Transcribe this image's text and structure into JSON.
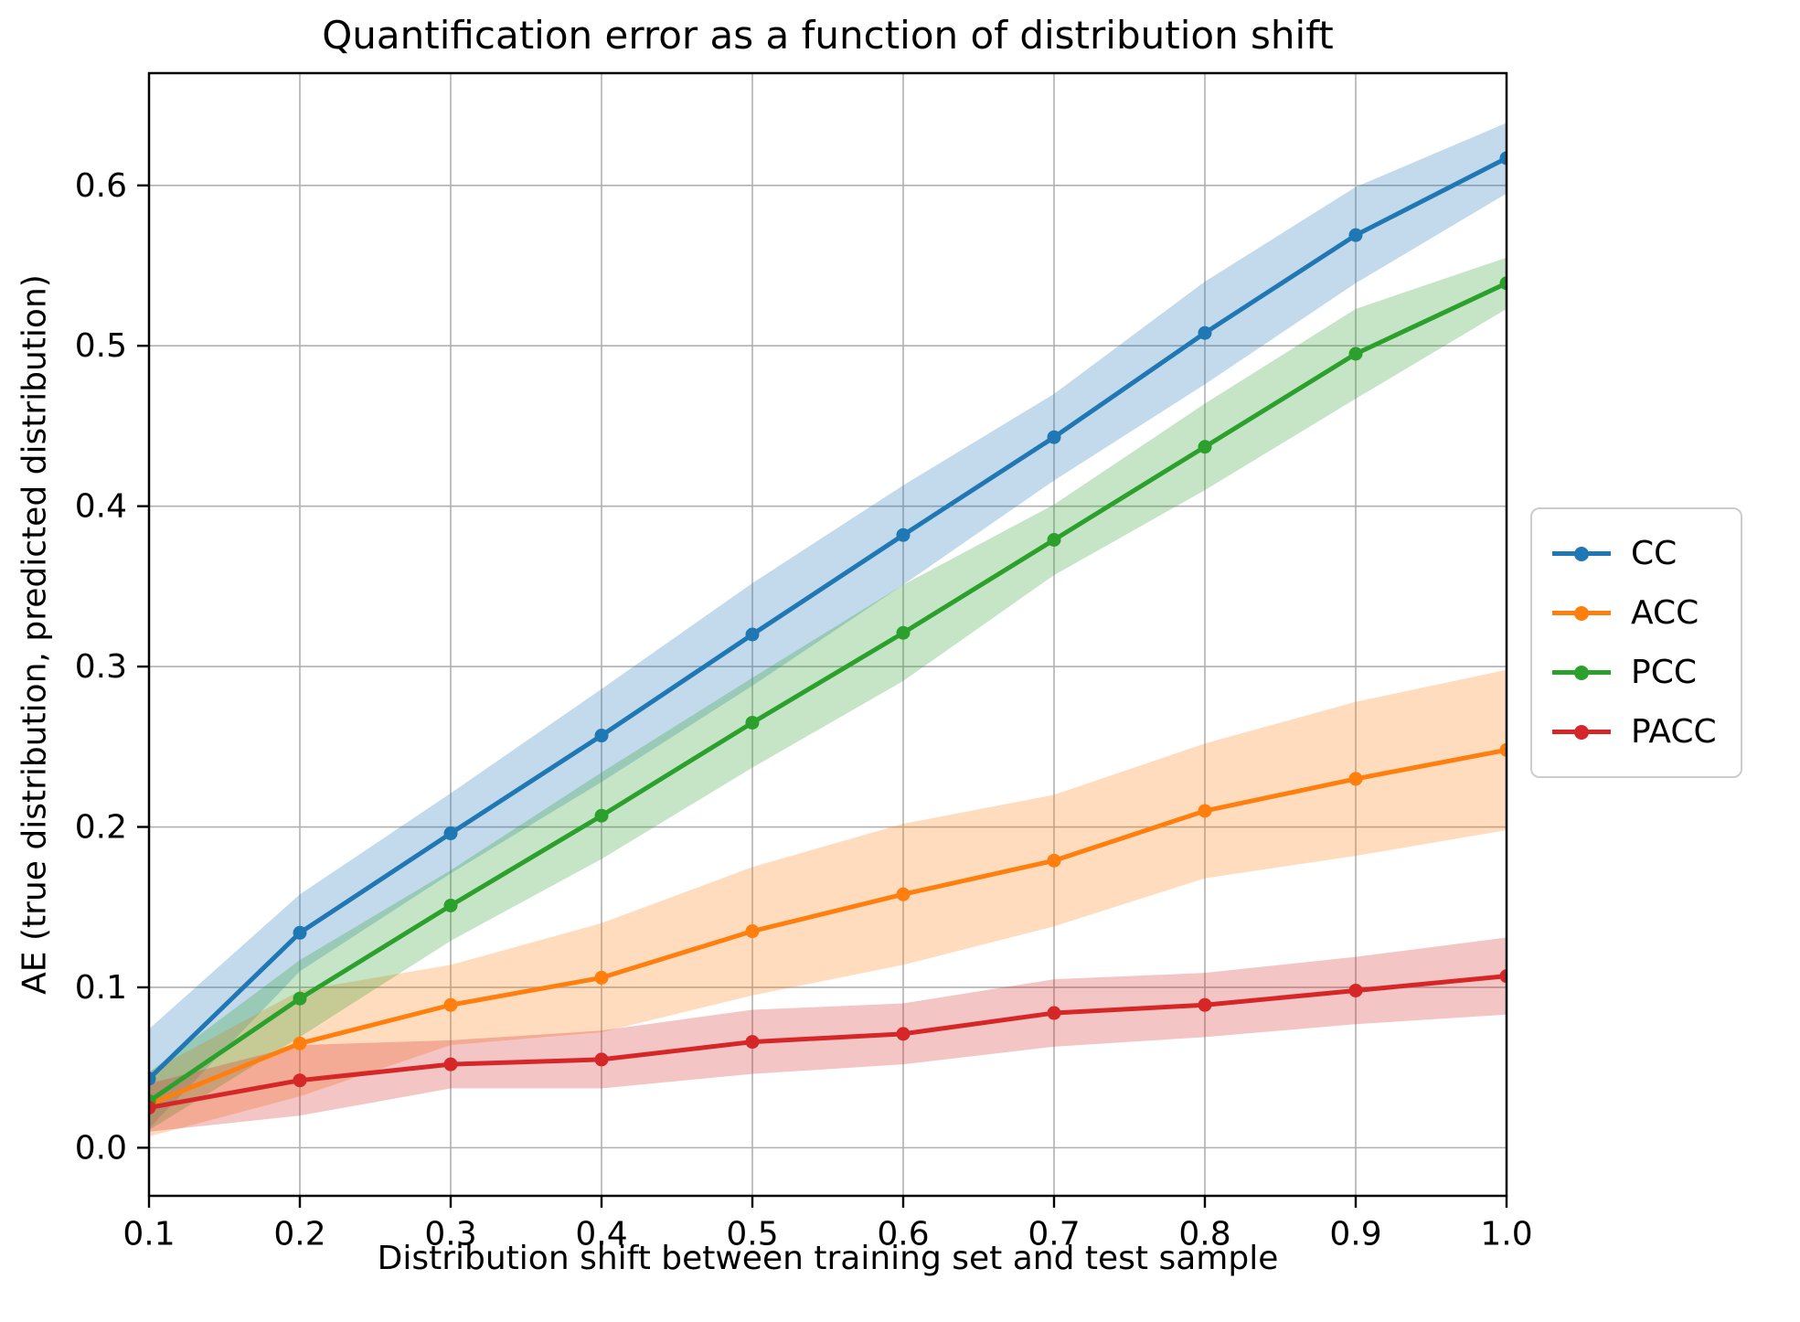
{
  "chart_data": {
    "type": "line",
    "title": "Quantification error as a function of distribution shift",
    "xlabel": "Distribution shift between training set and test sample",
    "ylabel": "AE (true distribution, predicted distribution)",
    "x": [
      0.1,
      0.2,
      0.3,
      0.4,
      0.5,
      0.6,
      0.7,
      0.8,
      0.9,
      1.0
    ],
    "x_tick_labels": [
      "0.1",
      "0.2",
      "0.3",
      "0.4",
      "0.5",
      "0.6",
      "0.7",
      "0.8",
      "0.9",
      "1.0"
    ],
    "y_ticks": [
      0.0,
      0.1,
      0.2,
      0.3,
      0.4,
      0.5,
      0.6
    ],
    "y_tick_labels": [
      "0.0",
      "0.1",
      "0.2",
      "0.3",
      "0.4",
      "0.5",
      "0.6"
    ],
    "xlim": [
      0.1,
      1.0
    ],
    "ylim": [
      -0.03,
      0.67
    ],
    "grid": true,
    "grid_color": "#b0b0b0",
    "legend_position": "outside-right",
    "marker": "circle",
    "band_opacity": 0.27,
    "series": [
      {
        "name": "CC",
        "color": "#1f77b4",
        "values": [
          0.043,
          0.134,
          0.196,
          0.257,
          0.32,
          0.382,
          0.443,
          0.508,
          0.569,
          0.617
        ],
        "band_lower": [
          0.012,
          0.11,
          0.171,
          0.228,
          0.288,
          0.351,
          0.416,
          0.476,
          0.539,
          0.595
        ],
        "band_upper": [
          0.074,
          0.158,
          0.221,
          0.286,
          0.352,
          0.413,
          0.47,
          0.54,
          0.599,
          0.639
        ]
      },
      {
        "name": "ACC",
        "color": "#ff7f0e",
        "values": [
          0.027,
          0.065,
          0.089,
          0.106,
          0.135,
          0.158,
          0.179,
          0.21,
          0.23,
          0.248
        ],
        "band_lower": [
          0.007,
          0.032,
          0.064,
          0.072,
          0.095,
          0.114,
          0.138,
          0.168,
          0.182,
          0.198
        ],
        "band_upper": [
          0.047,
          0.098,
          0.114,
          0.14,
          0.175,
          0.202,
          0.22,
          0.252,
          0.278,
          0.298
        ]
      },
      {
        "name": "PCC",
        "color": "#2ca02c",
        "values": [
          0.029,
          0.093,
          0.151,
          0.207,
          0.265,
          0.321,
          0.379,
          0.437,
          0.495,
          0.539
        ],
        "band_lower": [
          0.011,
          0.069,
          0.129,
          0.18,
          0.237,
          0.291,
          0.357,
          0.41,
          0.467,
          0.523
        ],
        "band_upper": [
          0.047,
          0.117,
          0.173,
          0.234,
          0.293,
          0.351,
          0.401,
          0.464,
          0.523,
          0.555
        ]
      },
      {
        "name": "PACC",
        "color": "#d62728",
        "values": [
          0.025,
          0.042,
          0.052,
          0.055,
          0.066,
          0.071,
          0.084,
          0.089,
          0.098,
          0.107
        ],
        "band_lower": [
          0.01,
          0.02,
          0.037,
          0.037,
          0.046,
          0.052,
          0.063,
          0.069,
          0.077,
          0.083
        ],
        "band_upper": [
          0.04,
          0.064,
          0.067,
          0.073,
          0.086,
          0.09,
          0.105,
          0.109,
          0.119,
          0.131
        ]
      }
    ]
  }
}
